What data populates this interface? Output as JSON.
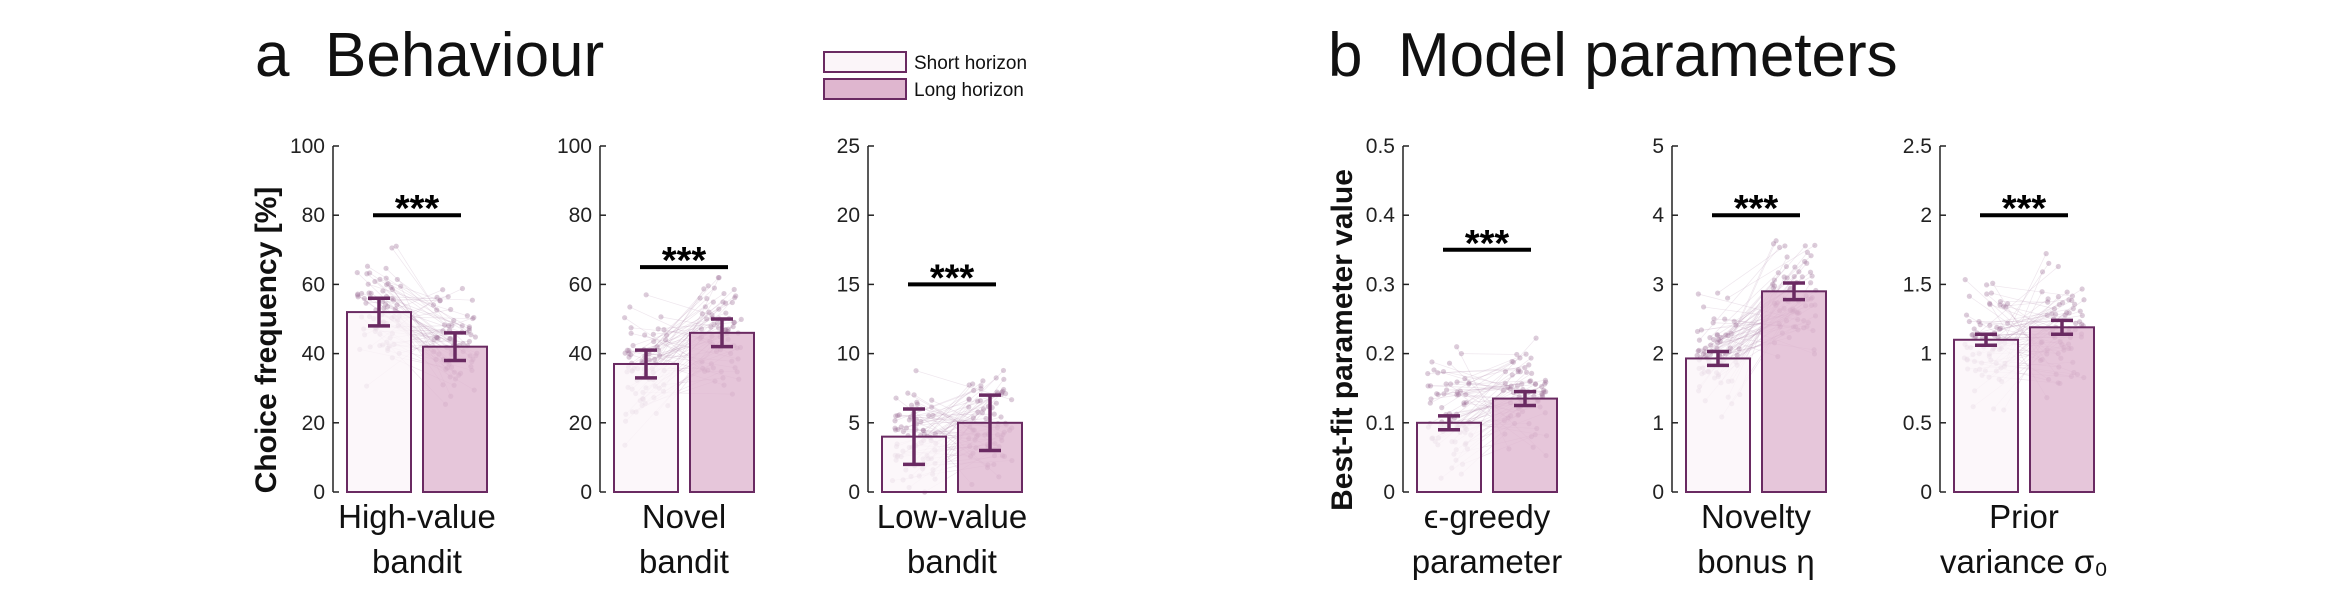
{
  "figure": {
    "panel_a": {
      "letter": "a",
      "title": "Behaviour",
      "ylabel": "Choice frequency [%]"
    },
    "panel_b": {
      "letter": "b",
      "title": "Model parameters",
      "ylabel": "Best-fit parameter value"
    },
    "legend": {
      "placement": "top-center",
      "entries": [
        {
          "label": "Short horizon",
          "color": "#fbf5f9"
        },
        {
          "label": "Long horizon",
          "color": "#dfb6cf"
        }
      ]
    },
    "colors": {
      "edge": "#6a2a62",
      "scatter": "#9a6d96",
      "line": "#b48fb0",
      "short_fill": "#fbf5f9",
      "long_fill": "#dfb6cf"
    }
  },
  "chart_data": [
    {
      "type": "bar",
      "xlabel_lines": [
        "High-value",
        "bandit"
      ],
      "ylim": [
        0,
        100
      ],
      "yticks": [
        "0",
        "20",
        "40",
        "60",
        "80",
        "100"
      ],
      "series": [
        {
          "name": "Short horizon",
          "value": 52,
          "err": 4
        },
        {
          "name": "Long horizon",
          "value": 42,
          "err": 4
        }
      ],
      "significance": "***",
      "sig_y": 80
    },
    {
      "type": "bar",
      "xlabel_lines": [
        "Novel",
        "bandit"
      ],
      "ylim": [
        0,
        100
      ],
      "yticks": [
        "0",
        "20",
        "40",
        "60",
        "80",
        "100"
      ],
      "series": [
        {
          "name": "Short horizon",
          "value": 37,
          "err": 4
        },
        {
          "name": "Long horizon",
          "value": 46,
          "err": 4
        }
      ],
      "significance": "***",
      "sig_y": 65
    },
    {
      "type": "bar",
      "xlabel_lines": [
        "Low-value",
        "bandit"
      ],
      "ylim": [
        0,
        25
      ],
      "yticks": [
        "0",
        "5",
        "10",
        "15",
        "20",
        "25"
      ],
      "series": [
        {
          "name": "Short horizon",
          "value": 4,
          "err": 2
        },
        {
          "name": "Long horizon",
          "value": 5,
          "err": 2
        }
      ],
      "significance": "***",
      "sig_y": 15
    },
    {
      "type": "bar",
      "xlabel_lines": [
        "ϵ-greedy",
        "parameter"
      ],
      "ylim": [
        0,
        0.5
      ],
      "yticks": [
        "0",
        "0.1",
        "0.2",
        "0.3",
        "0.4",
        "0.5"
      ],
      "series": [
        {
          "name": "Short horizon",
          "value": 0.1,
          "err": 0.01
        },
        {
          "name": "Long horizon",
          "value": 0.135,
          "err": 0.01
        }
      ],
      "significance": "***",
      "sig_y": 0.35
    },
    {
      "type": "bar",
      "xlabel_lines": [
        "Novelty",
        "bonus η"
      ],
      "ylim": [
        0,
        5
      ],
      "yticks": [
        "0",
        "1",
        "2",
        "3",
        "4",
        "5"
      ],
      "series": [
        {
          "name": "Short horizon",
          "value": 1.93,
          "err": 0.1
        },
        {
          "name": "Long horizon",
          "value": 2.9,
          "err": 0.12
        }
      ],
      "significance": "***",
      "sig_y": 4
    },
    {
      "type": "bar",
      "xlabel_lines": [
        "Prior",
        "variance σ₀"
      ],
      "ylim": [
        0,
        2.5
      ],
      "yticks": [
        "0",
        "0.5",
        "1",
        "1.5",
        "2",
        "2.5"
      ],
      "series": [
        {
          "name": "Short horizon",
          "value": 1.1,
          "err": 0.04
        },
        {
          "name": "Long horizon",
          "value": 1.19,
          "err": 0.05
        }
      ],
      "significance": "***",
      "sig_y": 2
    }
  ]
}
